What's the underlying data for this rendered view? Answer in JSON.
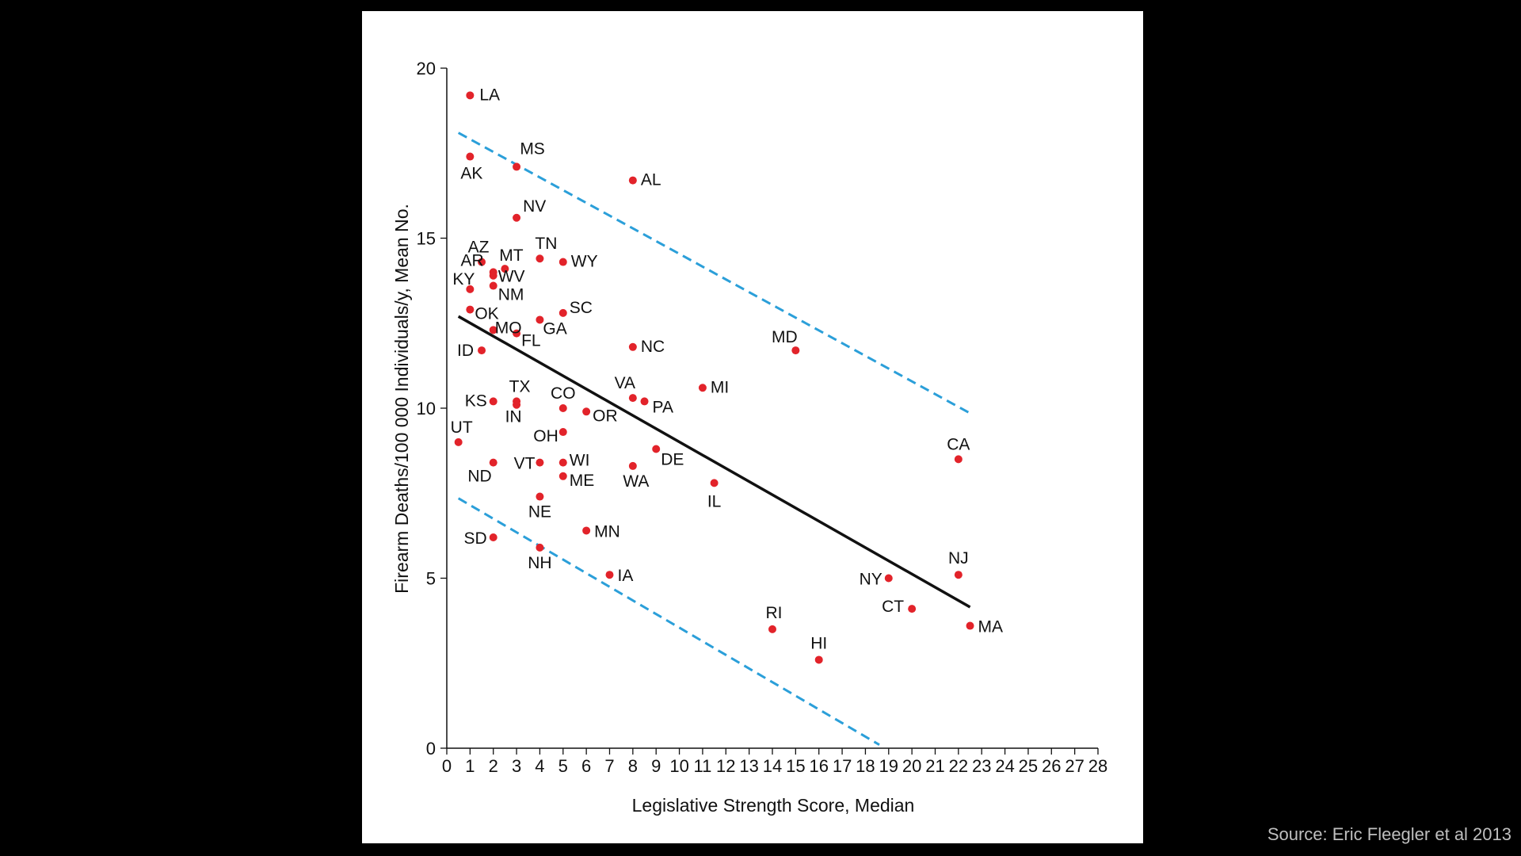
{
  "source": "Source: Eric Fleegler et al 2013",
  "colors": {
    "point": "#e2232a",
    "fit": "#111111",
    "band": "#2b9fd9",
    "background": "#000000",
    "panel": "#ffffff"
  },
  "chart_data": {
    "type": "scatter",
    "xlabel": "Legislative Strength Score, Median",
    "ylabel": "Firearm Deaths/100 000 Individuals/y, Mean No.",
    "xlim": [
      0,
      28
    ],
    "ylim": [
      0,
      20
    ],
    "xticks": [
      0,
      1,
      2,
      3,
      4,
      5,
      6,
      7,
      8,
      9,
      10,
      11,
      12,
      13,
      14,
      15,
      16,
      17,
      18,
      19,
      20,
      21,
      22,
      23,
      24,
      25,
      26,
      27,
      28
    ],
    "yticks": [
      0,
      5,
      10,
      15,
      20
    ],
    "grid": false,
    "points": [
      {
        "label": "LA",
        "x": 1,
        "y": 19.2
      },
      {
        "label": "AK",
        "x": 1,
        "y": 17.4
      },
      {
        "label": "MS",
        "x": 3,
        "y": 17.1
      },
      {
        "label": "AL",
        "x": 8,
        "y": 16.7
      },
      {
        "label": "NV",
        "x": 3,
        "y": 15.6
      },
      {
        "label": "AZ",
        "x": 1.5,
        "y": 14.3
      },
      {
        "label": "MT",
        "x": 2.5,
        "y": 14.1
      },
      {
        "label": "TN",
        "x": 4,
        "y": 14.4
      },
      {
        "label": "WY",
        "x": 5,
        "y": 14.3
      },
      {
        "label": "AR",
        "x": 2,
        "y": 14.0
      },
      {
        "label": "WV",
        "x": 2,
        "y": 13.9
      },
      {
        "label": "NM",
        "x": 2,
        "y": 13.6
      },
      {
        "label": "KY",
        "x": 1,
        "y": 13.5
      },
      {
        "label": "OK",
        "x": 1,
        "y": 12.9
      },
      {
        "label": "SC",
        "x": 5,
        "y": 12.8
      },
      {
        "label": "GA",
        "x": 4,
        "y": 12.6
      },
      {
        "label": "MO",
        "x": 2,
        "y": 12.3
      },
      {
        "label": "FL",
        "x": 3,
        "y": 12.2
      },
      {
        "label": "NC",
        "x": 8,
        "y": 11.8
      },
      {
        "label": "MD",
        "x": 15,
        "y": 11.7
      },
      {
        "label": "ID",
        "x": 1.5,
        "y": 11.7
      },
      {
        "label": "MI",
        "x": 11,
        "y": 10.6
      },
      {
        "label": "VA",
        "x": 8,
        "y": 10.3
      },
      {
        "label": "PA",
        "x": 8.5,
        "y": 10.2
      },
      {
        "label": "KS",
        "x": 2,
        "y": 10.2
      },
      {
        "label": "TX",
        "x": 3,
        "y": 10.2
      },
      {
        "label": "IN",
        "x": 3,
        "y": 10.1
      },
      {
        "label": "CO",
        "x": 5,
        "y": 10.0
      },
      {
        "label": "OR",
        "x": 6,
        "y": 9.9
      },
      {
        "label": "OH",
        "x": 5,
        "y": 9.3
      },
      {
        "label": "UT",
        "x": 0.5,
        "y": 9.0
      },
      {
        "label": "DE",
        "x": 9,
        "y": 8.8
      },
      {
        "label": "CA",
        "x": 22,
        "y": 8.5
      },
      {
        "label": "VT",
        "x": 4,
        "y": 8.4
      },
      {
        "label": "WI",
        "x": 5,
        "y": 8.4
      },
      {
        "label": "ND",
        "x": 2,
        "y": 8.4
      },
      {
        "label": "WA",
        "x": 8,
        "y": 8.3
      },
      {
        "label": "ME",
        "x": 5,
        "y": 8.0
      },
      {
        "label": "IL",
        "x": 11.5,
        "y": 7.8
      },
      {
        "label": "NE",
        "x": 4,
        "y": 7.4
      },
      {
        "label": "MN",
        "x": 6,
        "y": 6.4
      },
      {
        "label": "SD",
        "x": 2,
        "y": 6.2
      },
      {
        "label": "NH",
        "x": 4,
        "y": 5.9
      },
      {
        "label": "NJ",
        "x": 22,
        "y": 5.1
      },
      {
        "label": "IA",
        "x": 7,
        "y": 5.1
      },
      {
        "label": "NY",
        "x": 19,
        "y": 5.0
      },
      {
        "label": "CT",
        "x": 20,
        "y": 4.1
      },
      {
        "label": "MA",
        "x": 22.5,
        "y": 3.6
      },
      {
        "label": "RI",
        "x": 14,
        "y": 3.5
      },
      {
        "label": "HI",
        "x": 16,
        "y": 2.6
      }
    ],
    "fit_line": {
      "x": [
        0.5,
        22.5
      ],
      "y": [
        12.7,
        4.15
      ]
    },
    "band_upper": {
      "x": [
        0.5,
        22.5
      ],
      "y": [
        18.1,
        9.85
      ]
    },
    "band_lower": {
      "x": [
        0.5,
        18.6
      ],
      "y": [
        7.35,
        0.1
      ]
    }
  }
}
